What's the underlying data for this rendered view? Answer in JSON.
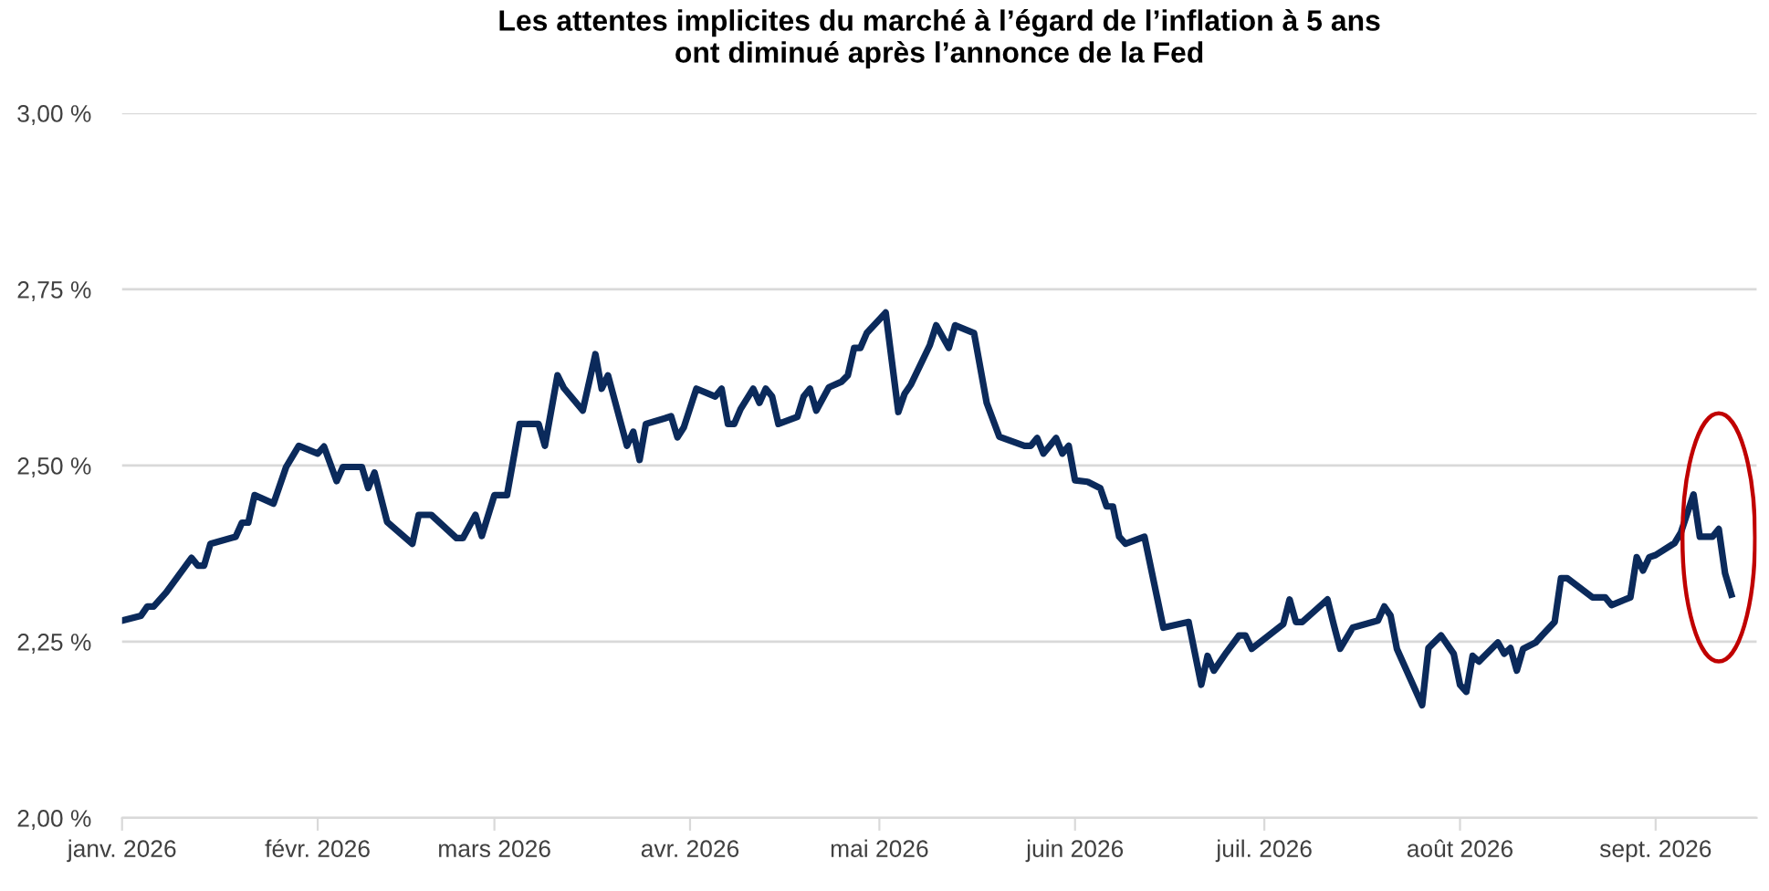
{
  "chart_data": {
    "type": "line",
    "title": "Les attentes implicites du marché à l’égard de l’inflation à 5 ans\nont diminué après l’annonce de la Fed",
    "x": [
      "2026-01-01",
      "2026-01-04",
      "2026-01-05",
      "2026-01-06",
      "2026-01-08",
      "2026-01-12",
      "2026-01-13",
      "2026-01-14",
      "2026-01-15",
      "2026-01-19",
      "2026-01-20",
      "2026-01-21",
      "2026-01-22",
      "2026-01-25",
      "2026-01-27",
      "2026-01-29",
      "2026-02-01",
      "2026-02-02",
      "2026-02-04",
      "2026-02-05",
      "2026-02-08",
      "2026-02-09",
      "2026-02-10",
      "2026-02-12",
      "2026-02-16",
      "2026-02-17",
      "2026-02-19",
      "2026-02-23",
      "2026-02-24",
      "2026-02-26",
      "2026-02-27",
      "2026-03-01",
      "2026-03-03",
      "2026-03-05",
      "2026-03-08",
      "2026-03-09",
      "2026-03-11",
      "2026-03-12",
      "2026-03-15",
      "2026-03-17",
      "2026-03-18",
      "2026-03-19",
      "2026-03-22",
      "2026-03-23",
      "2026-03-24",
      "2026-03-25",
      "2026-03-28",
      "2026-03-29",
      "2026-03-30",
      "2026-03-31",
      "2026-04-02",
      "2026-04-05",
      "2026-04-06",
      "2026-04-07",
      "2026-04-08",
      "2026-04-09",
      "2026-04-11",
      "2026-04-12",
      "2026-04-13",
      "2026-04-14",
      "2026-04-15",
      "2026-04-18",
      "2026-04-19",
      "2026-04-20",
      "2026-04-21",
      "2026-04-23",
      "2026-04-25",
      "2026-04-26",
      "2026-04-27",
      "2026-04-28",
      "2026-04-29",
      "2026-05-02",
      "2026-05-04",
      "2026-05-05",
      "2026-05-06",
      "2026-05-09",
      "2026-05-10",
      "2026-05-12",
      "2026-05-13",
      "2026-05-16",
      "2026-05-18",
      "2026-05-20",
      "2026-05-24",
      "2026-05-25",
      "2026-05-26",
      "2026-05-27",
      "2026-05-29",
      "2026-05-30",
      "2026-05-31",
      "2026-06-01",
      "2026-06-03",
      "2026-06-05",
      "2026-06-06",
      "2026-06-07",
      "2026-06-08",
      "2026-06-09",
      "2026-06-12",
      "2026-06-15",
      "2026-06-19",
      "2026-06-21",
      "2026-06-22",
      "2026-06-23",
      "2026-06-25",
      "2026-06-27",
      "2026-06-28",
      "2026-06-29",
      "2026-07-04",
      "2026-07-05",
      "2026-07-06",
      "2026-07-07",
      "2026-07-11",
      "2026-07-12",
      "2026-07-13",
      "2026-07-15",
      "2026-07-19",
      "2026-07-20",
      "2026-07-21",
      "2026-07-22",
      "2026-07-26",
      "2026-07-27",
      "2026-07-29",
      "2026-07-31",
      "2026-08-01",
      "2026-08-02",
      "2026-08-03",
      "2026-08-04",
      "2026-08-07",
      "2026-08-08",
      "2026-08-09",
      "2026-08-10",
      "2026-08-11",
      "2026-08-13",
      "2026-08-14",
      "2026-08-16",
      "2026-08-17",
      "2026-08-18",
      "2026-08-22",
      "2026-08-24",
      "2026-08-25",
      "2026-08-28",
      "2026-08-29",
      "2026-08-30",
      "2026-08-31",
      "2026-09-01",
      "2026-09-04",
      "2026-09-05",
      "2026-09-07",
      "2026-09-08",
      "2026-09-10",
      "2026-09-11",
      "2026-09-12",
      "2026-09-13"
    ],
    "series": [
      {
        "color": "#0b2a5b",
        "values": [
          2.28,
          2.287,
          2.3,
          2.3,
          2.32,
          2.369,
          2.358,
          2.358,
          2.389,
          2.399,
          2.419,
          2.419,
          2.458,
          2.446,
          2.498,
          2.528,
          2.517,
          2.527,
          2.478,
          2.498,
          2.498,
          2.468,
          2.49,
          2.42,
          2.389,
          2.43,
          2.43,
          2.397,
          2.397,
          2.43,
          2.4,
          2.458,
          2.458,
          2.559,
          2.559,
          2.528,
          2.628,
          2.61,
          2.578,
          2.658,
          2.609,
          2.628,
          2.528,
          2.548,
          2.508,
          2.559,
          2.567,
          2.57,
          2.54,
          2.554,
          2.609,
          2.598,
          2.609,
          2.559,
          2.559,
          2.58,
          2.609,
          2.589,
          2.609,
          2.598,
          2.559,
          2.569,
          2.598,
          2.609,
          2.578,
          2.611,
          2.619,
          2.628,
          2.667,
          2.667,
          2.688,
          2.717,
          2.576,
          2.602,
          2.615,
          2.671,
          2.699,
          2.667,
          2.699,
          2.688,
          2.589,
          2.541,
          2.528,
          2.528,
          2.539,
          2.517,
          2.539,
          2.517,
          2.528,
          2.479,
          2.477,
          2.468,
          2.442,
          2.442,
          2.399,
          2.389,
          2.399,
          2.27,
          2.278,
          2.189,
          2.23,
          2.209,
          2.235,
          2.259,
          2.259,
          2.24,
          2.275,
          2.31,
          2.278,
          2.278,
          2.31,
          2.274,
          2.24,
          2.27,
          2.28,
          2.3,
          2.287,
          2.24,
          2.16,
          2.241,
          2.259,
          2.233,
          2.189,
          2.179,
          2.23,
          2.222,
          2.249,
          2.233,
          2.241,
          2.209,
          2.24,
          2.249,
          2.259,
          2.278,
          2.34,
          2.34,
          2.313,
          2.313,
          2.302,
          2.313,
          2.37,
          2.351,
          2.37,
          2.373,
          2.39,
          2.405,
          2.459,
          2.399,
          2.399,
          2.41,
          2.347,
          2.317
        ]
      }
    ],
    "xlim": [
      "2026-01-01",
      "2026-09-17"
    ],
    "xticks": [
      {
        "value": "2026-01-01",
        "label": "janv. 2026"
      },
      {
        "value": "2026-02-01",
        "label": "févr. 2026"
      },
      {
        "value": "2026-03-01",
        "label": "mars 2026"
      },
      {
        "value": "2026-04-01",
        "label": "avr. 2026"
      },
      {
        "value": "2026-05-01",
        "label": "mai 2026"
      },
      {
        "value": "2026-06-01",
        "label": "juin 2026"
      },
      {
        "value": "2026-07-01",
        "label": "juil. 2026"
      },
      {
        "value": "2026-08-01",
        "label": "août 2026"
      },
      {
        "value": "2026-09-01",
        "label": "sept. 2026"
      }
    ],
    "ylim": [
      2.0,
      3.0
    ],
    "yticks": [
      {
        "value": 2.0,
        "label": "2,00 %"
      },
      {
        "value": 2.25,
        "label": "2,25 %"
      },
      {
        "value": 2.5,
        "label": "2,50 %"
      },
      {
        "value": 2.75,
        "label": "2,75 %"
      },
      {
        "value": 3.0,
        "label": "3,00 %"
      }
    ],
    "grid": "y",
    "marker": "none",
    "line_style": "solid"
  }
}
